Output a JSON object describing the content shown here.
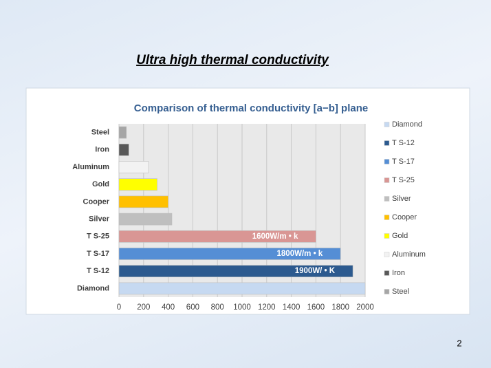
{
  "slide": {
    "title": "Ultra high thermal conductivity",
    "page_number": "2"
  },
  "chart_data": {
    "type": "hbar",
    "title": "Comparison  of thermal conductivity [a−b] plane",
    "categories": [
      "Steel",
      "Iron",
      "Aluminum",
      "Gold",
      "Cooper",
      "Silver",
      "T  S-25",
      "T  S-17",
      "T  S-12",
      "Diamond"
    ],
    "values": [
      60,
      80,
      240,
      310,
      400,
      430,
      1600,
      1800,
      1900,
      2000
    ],
    "value_labels": [
      null,
      null,
      null,
      null,
      null,
      null,
      "1600W/m • k",
      "1800W/m • k",
      "1900W/ • K",
      null
    ],
    "colors": [
      "#a6a6a6",
      "#595959",
      "#f2f2f2",
      "#ffff00",
      "#ffc000",
      "#bfbfbf",
      "#d99694",
      "#558ed5",
      "#2c5a8f",
      "#c6d9f1"
    ],
    "xlim": [
      0,
      2000
    ],
    "xticks": [
      0,
      200,
      400,
      600,
      800,
      1000,
      1200,
      1400,
      1600,
      1800,
      2000
    ],
    "grid": true,
    "legend": "right"
  }
}
